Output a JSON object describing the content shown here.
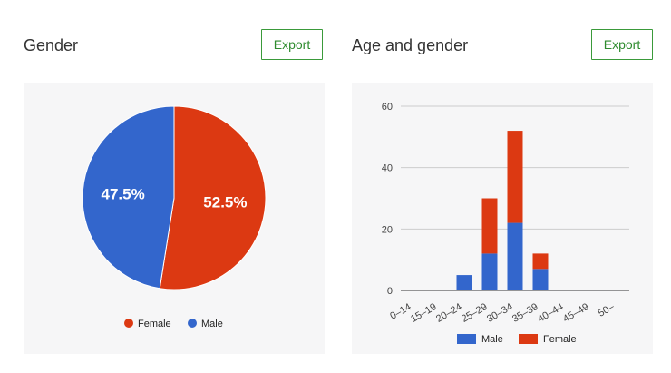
{
  "panels": {
    "gender": {
      "title": "Gender",
      "export_label": "Export"
    },
    "age_gender": {
      "title": "Age and gender",
      "export_label": "Export"
    }
  },
  "colors": {
    "male": "#3366cc",
    "female": "#dc3912",
    "export_border": "#3a9a3a",
    "card_bg": "#f6f6f7"
  },
  "chart_data": [
    {
      "type": "pie",
      "title": "",
      "slices": [
        {
          "name": "Female",
          "value": 52.5,
          "label": "52.5%"
        },
        {
          "name": "Male",
          "value": 47.5,
          "label": "47.5%"
        }
      ],
      "legend": [
        "Female",
        "Male"
      ],
      "legend_position": "bottom"
    },
    {
      "type": "bar",
      "stacked": true,
      "title": "",
      "categories": [
        "0–14",
        "15–19",
        "20–24",
        "25–29",
        "30–34",
        "35–39",
        "40–44",
        "45–49",
        "50–"
      ],
      "series": [
        {
          "name": "Male",
          "values": [
            0,
            0,
            5,
            12,
            22,
            7,
            0,
            0,
            0
          ]
        },
        {
          "name": "Female",
          "values": [
            0,
            0,
            0,
            18,
            30,
            5,
            0,
            0,
            0
          ]
        }
      ],
      "yticks": [
        "0",
        "20",
        "40",
        "60"
      ],
      "ylim": [
        0,
        60
      ],
      "grid": true,
      "legend": [
        "Male",
        "Female"
      ],
      "legend_position": "bottom"
    }
  ]
}
